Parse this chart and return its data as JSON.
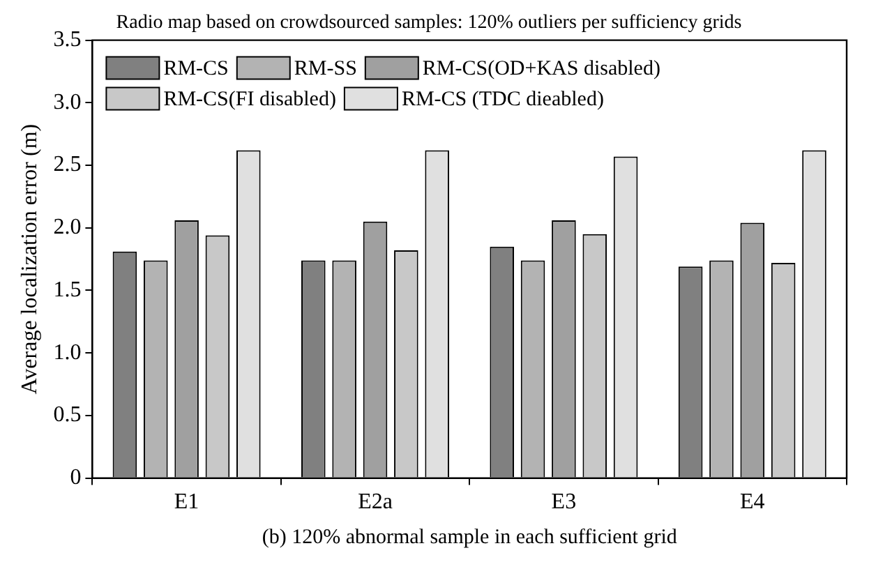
{
  "chart_data": {
    "type": "bar",
    "title": "Radio map based on crowdsourced samples: 120% outliers per sufficiency grids",
    "ylabel": "Average localization error (m)",
    "categories": [
      "E1",
      "E2a",
      "E3",
      "E4"
    ],
    "series": [
      {
        "name": "RM-CS",
        "color": "#808080",
        "values": [
          1.81,
          1.74,
          1.85,
          1.69
        ]
      },
      {
        "name": "RM-SS",
        "color": "#b3b3b3",
        "values": [
          1.74,
          1.74,
          1.74,
          1.74
        ]
      },
      {
        "name": "RM-CS(OD+KAS disabled)",
        "color": "#a0a0a0",
        "values": [
          2.06,
          2.05,
          2.06,
          2.04
        ]
      },
      {
        "name": "RM-CS(FI disabled)",
        "color": "#c8c8c8",
        "values": [
          1.94,
          1.82,
          1.95,
          1.72
        ]
      },
      {
        "name": "RM-CS (TDC dieabled)",
        "color": "#e0e0e0",
        "values": [
          2.62,
          2.62,
          2.57,
          2.62
        ]
      }
    ],
    "ylim": [
      0,
      3.5
    ],
    "yticks": [
      0,
      0.5,
      {
        "value": 1,
        "label": "1.0"
      },
      {
        "value": 1.5,
        "label": "1.5"
      },
      {
        "value": 2,
        "label": "2.0"
      },
      {
        "value": 2.5,
        "label": "2.5"
      },
      {
        "value": 3,
        "label": "3.0"
      },
      {
        "value": 3.5,
        "label": "3.5"
      }
    ],
    "legend": "top left",
    "annotations": [
      "(b) 120% abnormal sample in each sufficient grid"
    ]
  }
}
